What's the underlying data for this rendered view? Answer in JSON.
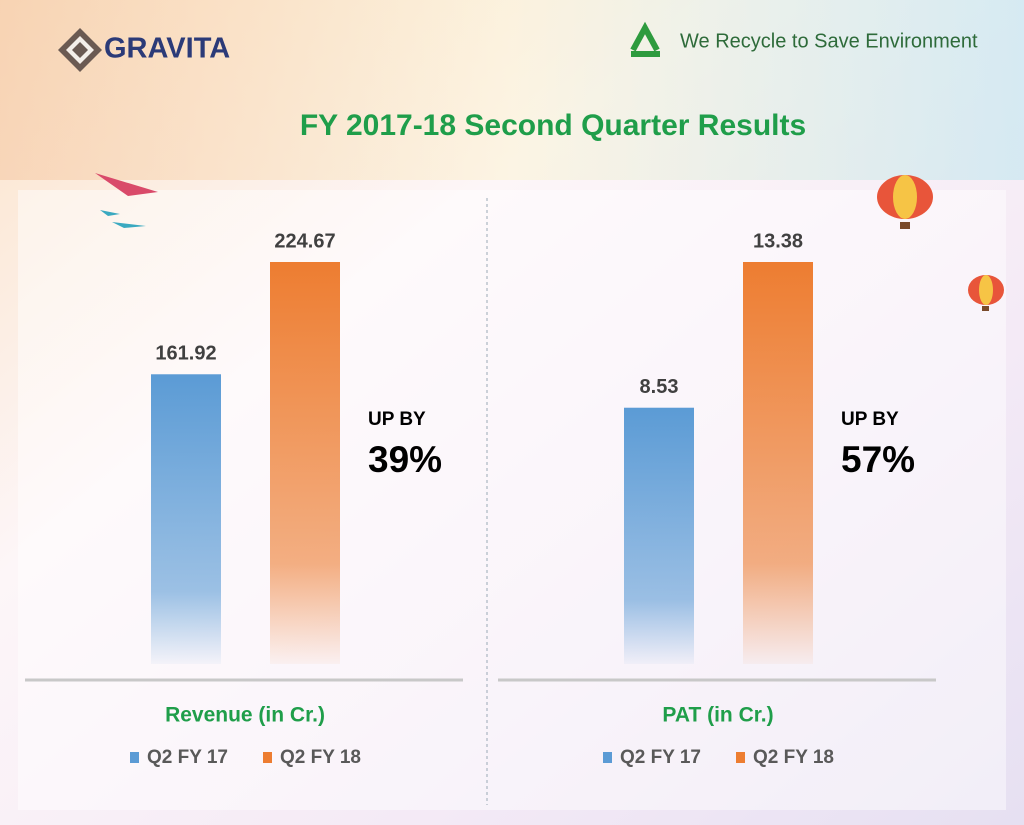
{
  "header": {
    "brand": "GRAVITA",
    "tagline": "We Recycle to Save Environment"
  },
  "title": "FY 2017-18 Second Quarter Results",
  "chart_data": [
    {
      "type": "bar",
      "title": "Revenue (in Cr.)",
      "series": [
        {
          "name": "Q2 FY 17",
          "color": "#5b9bd5",
          "values": [
            161.92
          ]
        },
        {
          "name": "Q2 FY 18",
          "color": "#ed7d31",
          "values": [
            224.67
          ]
        }
      ],
      "annotations": [
        "UP BY",
        "39%"
      ]
    },
    {
      "type": "bar",
      "title": "PAT (in Cr.)",
      "series": [
        {
          "name": "Q2 FY 17",
          "color": "#5b9bd5",
          "values": [
            8.53
          ]
        },
        {
          "name": "Q2 FY 18",
          "color": "#ed7d31",
          "values": [
            13.38
          ]
        }
      ],
      "annotations": [
        "UP BY",
        "57%"
      ]
    }
  ]
}
